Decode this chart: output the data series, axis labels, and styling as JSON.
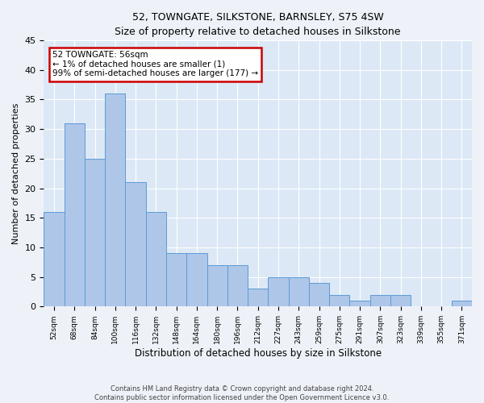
{
  "title": "52, TOWNGATE, SILKSTONE, BARNSLEY, S75 4SW",
  "subtitle": "Size of property relative to detached houses in Silkstone",
  "xlabel": "Distribution of detached houses by size in Silkstone",
  "ylabel": "Number of detached properties",
  "categories": [
    "52sqm",
    "68sqm",
    "84sqm",
    "100sqm",
    "116sqm",
    "132sqm",
    "148sqm",
    "164sqm",
    "180sqm",
    "196sqm",
    "212sqm",
    "227sqm",
    "243sqm",
    "259sqm",
    "275sqm",
    "291sqm",
    "307sqm",
    "323sqm",
    "339sqm",
    "355sqm",
    "371sqm"
  ],
  "values": [
    16,
    31,
    25,
    36,
    21,
    16,
    9,
    9,
    7,
    7,
    3,
    5,
    5,
    4,
    2,
    1,
    2,
    2,
    0,
    0,
    1
  ],
  "bar_color": "#aec6e8",
  "bar_edge_color": "#5b9bd5",
  "highlight_box_color": "#cc0000",
  "annotation_line1": "52 TOWNGATE: 56sqm",
  "annotation_line2": "← 1% of detached houses are smaller (1)",
  "annotation_line3": "99% of semi-detached houses are larger (177) →",
  "ylim": [
    0,
    45
  ],
  "yticks": [
    0,
    5,
    10,
    15,
    20,
    25,
    30,
    35,
    40,
    45
  ],
  "footer_line1": "Contains HM Land Registry data © Crown copyright and database right 2024.",
  "footer_line2": "Contains public sector information licensed under the Open Government Licence v3.0.",
  "background_color": "#eef2f8",
  "plot_bg_color": "#dce8f5"
}
